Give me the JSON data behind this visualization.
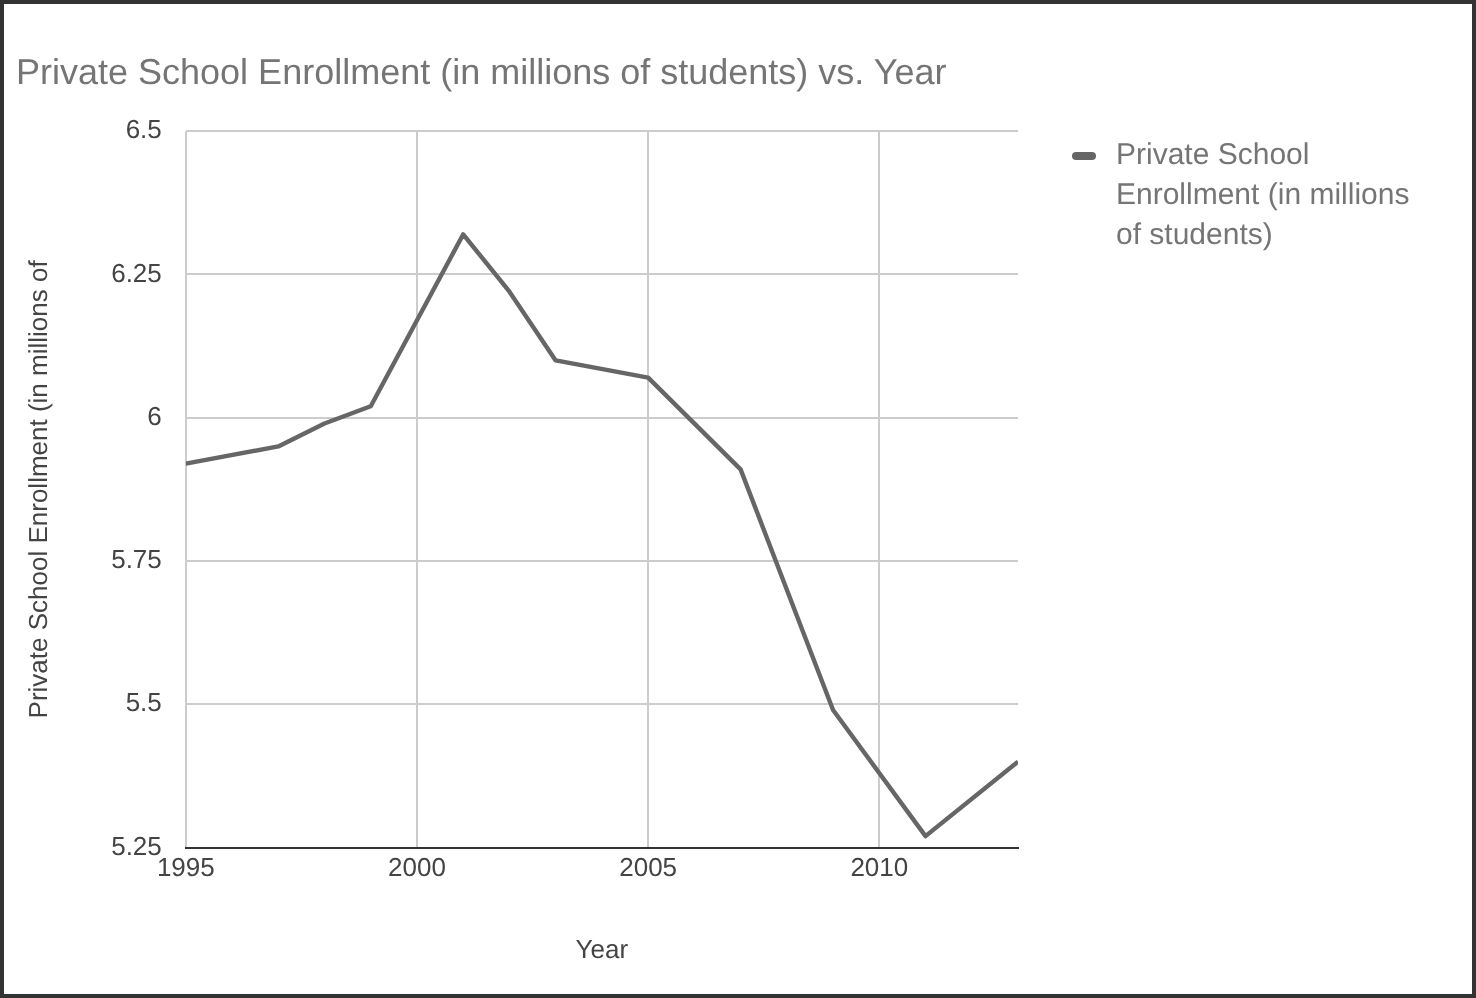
{
  "chart_data": {
    "type": "line",
    "title": "Private School Enrollment (in millions of students) vs. Year",
    "xlabel": "Year",
    "ylabel": "Private School Enrollment (in millions of",
    "x": [
      1995,
      1997,
      1998,
      1999,
      2001,
      2002,
      2003,
      2005,
      2007,
      2009,
      2011,
      2013
    ],
    "series": [
      {
        "name": "Private School Enrollment (in millions of students)",
        "color": "#666666",
        "values": [
          5.92,
          5.95,
          5.99,
          6.02,
          6.32,
          6.22,
          6.1,
          6.07,
          5.91,
          5.49,
          5.27,
          5.4
        ]
      }
    ],
    "xlim": [
      1995,
      2013
    ],
    "xticks": [
      1995,
      2000,
      2005,
      2010
    ],
    "ylim": [
      5.25,
      6.5
    ],
    "yticks": [
      5.25,
      5.5,
      5.75,
      6,
      6.25,
      6.5
    ],
    "grid": true,
    "legend": "top right",
    "marker": "none",
    "line_style": "solid"
  }
}
